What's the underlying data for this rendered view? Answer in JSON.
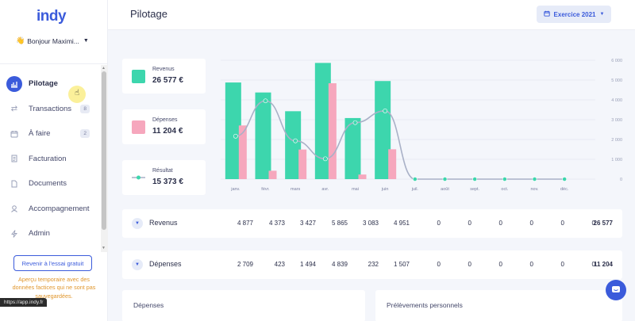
{
  "app": {
    "logo": "indy",
    "greeting": "Bonjour Maximi...",
    "url": "https://app.indy.fr"
  },
  "sidebar": {
    "items": [
      {
        "label": "Pilotage",
        "badge": ""
      },
      {
        "label": "Transactions",
        "badge": "8"
      },
      {
        "label": "À faire",
        "badge": "2"
      },
      {
        "label": "Facturation",
        "badge": ""
      },
      {
        "label": "Documents",
        "badge": ""
      },
      {
        "label": "Accompagnement",
        "badge": ""
      },
      {
        "label": "Admin",
        "badge": ""
      }
    ],
    "trial_button": "Revenir à l'essai gratuit",
    "warning": "Aperçu temporaire avec des données factices qui ne sont pas sauvegardées."
  },
  "header": {
    "title": "Pilotage",
    "year_button": "Exercice 2021"
  },
  "summary": {
    "revenus": {
      "label": "Revenus",
      "value": "26 577 €",
      "color": "#3dd6ad"
    },
    "depenses": {
      "label": "Dépenses",
      "value": "11 204 €",
      "color": "#f6a7bd"
    },
    "resultat": {
      "label": "Résultat",
      "value": "15 373 €",
      "color": "#a9b1c7"
    }
  },
  "chart_data": {
    "type": "bar",
    "categories": [
      "janv.",
      "févr.",
      "mars",
      "avr.",
      "mai",
      "juin",
      "juil.",
      "août",
      "sept.",
      "oct.",
      "nov.",
      "déc."
    ],
    "series": [
      {
        "name": "Revenus",
        "type": "bar",
        "color": "#3dd6ad",
        "values": [
          4877,
          4373,
          3427,
          5865,
          3083,
          4951,
          0,
          0,
          0,
          0,
          0,
          0
        ]
      },
      {
        "name": "Dépenses",
        "type": "bar",
        "color": "#f6a7bd",
        "values": [
          2709,
          423,
          1494,
          4839,
          232,
          1507,
          0,
          0,
          0,
          0,
          0,
          0
        ]
      },
      {
        "name": "Résultat",
        "type": "line",
        "color": "#a9b1c7",
        "values": [
          2168,
          3950,
          1933,
          1026,
          2851,
          3444,
          0,
          0,
          0,
          0,
          0,
          0
        ]
      }
    ],
    "ylim": [
      0,
      6000
    ],
    "yticks": [
      "0",
      "1 000",
      "2 000",
      "3 000",
      "4 000",
      "5 000",
      "6 000"
    ],
    "ytick_values": [
      0,
      1000,
      2000,
      3000,
      4000,
      5000,
      6000
    ],
    "grid": true,
    "axis_position": "right"
  },
  "table": {
    "rows": [
      {
        "label": "Revenus",
        "cells": [
          "4 877",
          "4 373",
          "3 427",
          "5 865",
          "3 083",
          "4 951",
          "0",
          "0",
          "0",
          "0",
          "0",
          "0"
        ],
        "total": "26 577"
      },
      {
        "label": "Dépenses",
        "cells": [
          "2 709",
          "423",
          "1 494",
          "4 839",
          "232",
          "1 507",
          "0",
          "0",
          "0",
          "0",
          "0",
          "0"
        ],
        "total": "11 204"
      }
    ]
  },
  "bottom": {
    "left_title": "Dépenses",
    "right_title": "Prélèvements personnels"
  }
}
